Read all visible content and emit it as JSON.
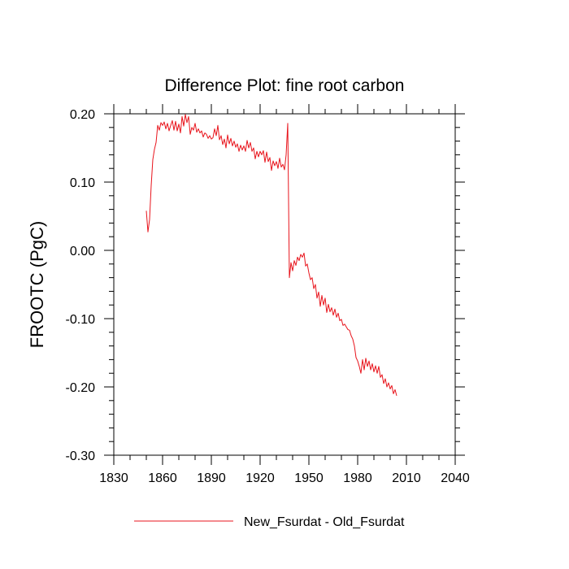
{
  "chart_data": {
    "type": "line",
    "title": "Difference Plot: fine root carbon",
    "xlabel": "",
    "ylabel": "FROOTC  (PgC)",
    "xlim": [
      1830,
      2040
    ],
    "ylim": [
      -0.3,
      0.2
    ],
    "x_ticks": [
      1830,
      1860,
      1890,
      1920,
      1950,
      1980,
      2010,
      2040
    ],
    "x_tick_labels": [
      "1830",
      "1860",
      "1890",
      "1920",
      "1950",
      "1980",
      "2010",
      "2040"
    ],
    "y_ticks": [
      0.2,
      0.1,
      0.0,
      -0.1,
      -0.2,
      -0.3
    ],
    "y_tick_labels": [
      "0.20",
      "0.10",
      "0.00",
      "-0.10",
      "-0.20",
      "-0.30"
    ],
    "grid": false,
    "legend_position": "bottom",
    "series": [
      {
        "name": "New_Fsurdat - Old_Fsurdat",
        "color": "#e8141c",
        "points": [
          [
            1850,
            0.058
          ],
          [
            1851,
            0.027
          ],
          [
            1852,
            0.045
          ],
          [
            1853,
            0.095
          ],
          [
            1854,
            0.133
          ],
          [
            1855,
            0.148
          ],
          [
            1856,
            0.158
          ],
          [
            1857,
            0.183
          ],
          [
            1858,
            0.176
          ],
          [
            1859,
            0.187
          ],
          [
            1860,
            0.183
          ],
          [
            1861,
            0.188
          ],
          [
            1862,
            0.178
          ],
          [
            1863,
            0.186
          ],
          [
            1864,
            0.175
          ],
          [
            1865,
            0.183
          ],
          [
            1866,
            0.19
          ],
          [
            1867,
            0.176
          ],
          [
            1868,
            0.189
          ],
          [
            1869,
            0.175
          ],
          [
            1870,
            0.185
          ],
          [
            1871,
            0.172
          ],
          [
            1872,
            0.196
          ],
          [
            1873,
            0.182
          ],
          [
            1874,
            0.199
          ],
          [
            1875,
            0.187
          ],
          [
            1876,
            0.196
          ],
          [
            1877,
            0.17
          ],
          [
            1878,
            0.18
          ],
          [
            1879,
            0.176
          ],
          [
            1880,
            0.186
          ],
          [
            1881,
            0.173
          ],
          [
            1882,
            0.178
          ],
          [
            1883,
            0.172
          ],
          [
            1884,
            0.175
          ],
          [
            1885,
            0.166
          ],
          [
            1886,
            0.172
          ],
          [
            1887,
            0.17
          ],
          [
            1888,
            0.164
          ],
          [
            1889,
            0.168
          ],
          [
            1890,
            0.163
          ],
          [
            1891,
            0.165
          ],
          [
            1892,
            0.178
          ],
          [
            1893,
            0.168
          ],
          [
            1894,
            0.183
          ],
          [
            1895,
            0.162
          ],
          [
            1896,
            0.168
          ],
          [
            1897,
            0.155
          ],
          [
            1898,
            0.163
          ],
          [
            1899,
            0.15
          ],
          [
            1900,
            0.169
          ],
          [
            1901,
            0.156
          ],
          [
            1902,
            0.164
          ],
          [
            1903,
            0.153
          ],
          [
            1904,
            0.16
          ],
          [
            1905,
            0.151
          ],
          [
            1906,
            0.156
          ],
          [
            1907,
            0.145
          ],
          [
            1908,
            0.154
          ],
          [
            1909,
            0.147
          ],
          [
            1910,
            0.153
          ],
          [
            1911,
            0.145
          ],
          [
            1912,
            0.161
          ],
          [
            1913,
            0.15
          ],
          [
            1914,
            0.158
          ],
          [
            1915,
            0.145
          ],
          [
            1916,
            0.15
          ],
          [
            1917,
            0.134
          ],
          [
            1918,
            0.145
          ],
          [
            1919,
            0.137
          ],
          [
            1920,
            0.145
          ],
          [
            1921,
            0.14
          ],
          [
            1922,
            0.146
          ],
          [
            1923,
            0.129
          ],
          [
            1924,
            0.144
          ],
          [
            1925,
            0.13
          ],
          [
            1926,
            0.136
          ],
          [
            1927,
            0.117
          ],
          [
            1928,
            0.131
          ],
          [
            1929,
            0.124
          ],
          [
            1930,
            0.13
          ],
          [
            1931,
            0.12
          ],
          [
            1932,
            0.135
          ],
          [
            1933,
            0.122
          ],
          [
            1934,
            0.126
          ],
          [
            1935,
            0.118
          ],
          [
            1936,
            0.14
          ],
          [
            1937,
            0.186
          ],
          [
            1938,
            -0.04
          ],
          [
            1939,
            -0.018
          ],
          [
            1940,
            -0.03
          ],
          [
            1941,
            -0.015
          ],
          [
            1942,
            -0.022
          ],
          [
            1943,
            -0.01
          ],
          [
            1944,
            -0.015
          ],
          [
            1945,
            -0.006
          ],
          [
            1946,
            -0.01
          ],
          [
            1947,
            -0.004
          ],
          [
            1948,
            -0.023
          ],
          [
            1949,
            -0.02
          ],
          [
            1950,
            -0.033
          ],
          [
            1951,
            -0.043
          ],
          [
            1952,
            -0.04
          ],
          [
            1953,
            -0.056
          ],
          [
            1954,
            -0.05
          ],
          [
            1955,
            -0.07
          ],
          [
            1956,
            -0.061
          ],
          [
            1957,
            -0.082
          ],
          [
            1958,
            -0.066
          ],
          [
            1959,
            -0.08
          ],
          [
            1960,
            -0.07
          ],
          [
            1961,
            -0.091
          ],
          [
            1962,
            -0.079
          ],
          [
            1963,
            -0.09
          ],
          [
            1964,
            -0.084
          ],
          [
            1965,
            -0.095
          ],
          [
            1966,
            -0.086
          ],
          [
            1967,
            -0.098
          ],
          [
            1968,
            -0.092
          ],
          [
            1969,
            -0.103
          ],
          [
            1970,
            -0.101
          ],
          [
            1971,
            -0.11
          ],
          [
            1972,
            -0.108
          ],
          [
            1973,
            -0.112
          ],
          [
            1974,
            -0.116
          ],
          [
            1975,
            -0.117
          ],
          [
            1976,
            -0.125
          ],
          [
            1977,
            -0.13
          ],
          [
            1978,
            -0.14
          ],
          [
            1979,
            -0.157
          ],
          [
            1980,
            -0.162
          ],
          [
            1981,
            -0.17
          ],
          [
            1982,
            -0.18
          ],
          [
            1983,
            -0.16
          ],
          [
            1984,
            -0.175
          ],
          [
            1985,
            -0.158
          ],
          [
            1986,
            -0.17
          ],
          [
            1987,
            -0.162
          ],
          [
            1988,
            -0.175
          ],
          [
            1989,
            -0.166
          ],
          [
            1990,
            -0.178
          ],
          [
            1991,
            -0.169
          ],
          [
            1992,
            -0.18
          ],
          [
            1993,
            -0.17
          ],
          [
            1994,
            -0.186
          ],
          [
            1995,
            -0.182
          ],
          [
            1996,
            -0.195
          ],
          [
            1997,
            -0.188
          ],
          [
            1998,
            -0.2
          ],
          [
            1999,
            -0.194
          ],
          [
            2000,
            -0.203
          ],
          [
            2001,
            -0.198
          ],
          [
            2002,
            -0.21
          ],
          [
            2003,
            -0.204
          ],
          [
            2004,
            -0.213
          ]
        ]
      }
    ]
  }
}
